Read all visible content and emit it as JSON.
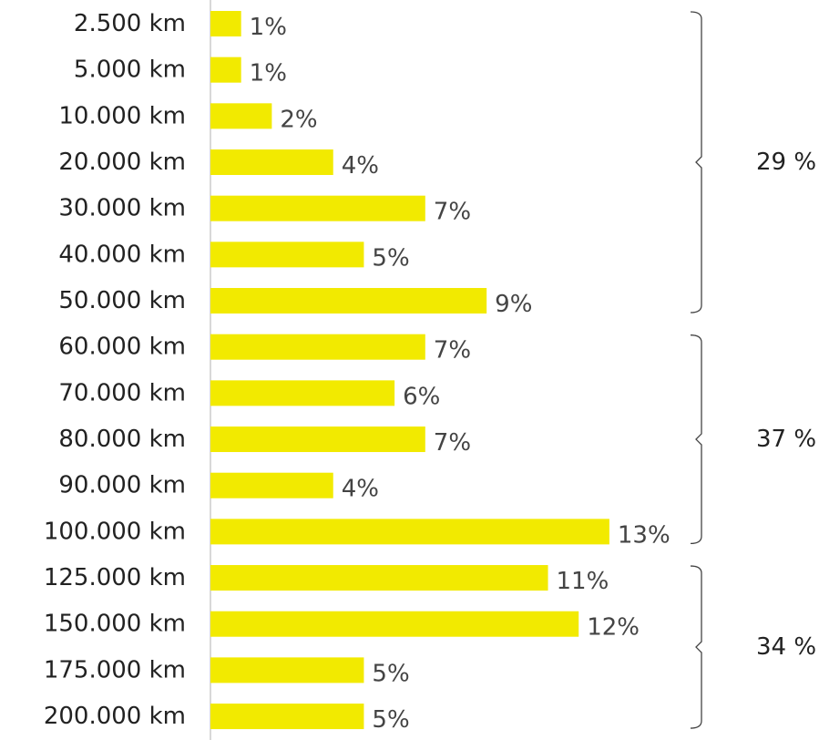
{
  "chart_data": {
    "type": "bar",
    "orientation": "horizontal",
    "categories": [
      "2.500 km",
      "5.000 km",
      "10.000 km",
      "20.000 km",
      "30.000 km",
      "40.000 km",
      "50.000 km",
      "60.000 km",
      "70.000 km",
      "80.000 km",
      "90.000 km",
      "100.000 km",
      "125.000 km",
      "150.000 km",
      "175.000 km",
      "200.000 km"
    ],
    "values": [
      1,
      1,
      2,
      4,
      7,
      5,
      9,
      7,
      6,
      7,
      4,
      13,
      11,
      12,
      5,
      5
    ],
    "value_labels": [
      "1%",
      "1%",
      "2%",
      "4%",
      "7%",
      "5%",
      "9%",
      "7%",
      "6%",
      "7%",
      "4%",
      "13%",
      "11%",
      "12%",
      "5%",
      "5%"
    ],
    "color": "#f2ea00",
    "xlim": [
      0,
      19
    ],
    "groups": [
      {
        "value": 29,
        "label": "29 %",
        "count": 7
      },
      {
        "value": 37,
        "label": "37 %",
        "count": 5
      },
      {
        "value": 34,
        "label": "34 %",
        "count": 4
      }
    ]
  }
}
